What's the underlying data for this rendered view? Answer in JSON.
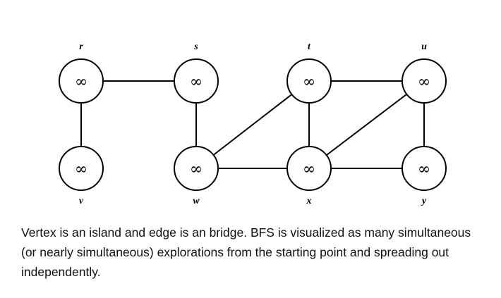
{
  "graph": {
    "vertices": [
      {
        "id": "r",
        "label": "r",
        "value": "∞",
        "row": 0,
        "col": 0,
        "label_pos": "above"
      },
      {
        "id": "s",
        "label": "s",
        "value": "∞",
        "row": 0,
        "col": 1,
        "label_pos": "above"
      },
      {
        "id": "t",
        "label": "t",
        "value": "∞",
        "row": 0,
        "col": 2,
        "label_pos": "above"
      },
      {
        "id": "u",
        "label": "u",
        "value": "∞",
        "row": 0,
        "col": 3,
        "label_pos": "above"
      },
      {
        "id": "v",
        "label": "v",
        "value": "∞",
        "row": 1,
        "col": 0,
        "label_pos": "below"
      },
      {
        "id": "w",
        "label": "w",
        "value": "∞",
        "row": 1,
        "col": 1,
        "label_pos": "below"
      },
      {
        "id": "x",
        "label": "x",
        "value": "∞",
        "row": 1,
        "col": 2,
        "label_pos": "below"
      },
      {
        "id": "y",
        "label": "y",
        "value": "∞",
        "row": 1,
        "col": 3,
        "label_pos": "below"
      }
    ],
    "edges": [
      [
        "r",
        "s"
      ],
      [
        "r",
        "v"
      ],
      [
        "s",
        "w"
      ],
      [
        "w",
        "t"
      ],
      [
        "w",
        "x"
      ],
      [
        "t",
        "x"
      ],
      [
        "t",
        "u"
      ],
      [
        "x",
        "u"
      ],
      [
        "x",
        "y"
      ],
      [
        "u",
        "y"
      ]
    ]
  },
  "caption": "Vertex is an island and edge is an bridge. BFS is visualized as many simultaneous (or nearly simultaneous) explorations from the starting point and spreading out independently."
}
